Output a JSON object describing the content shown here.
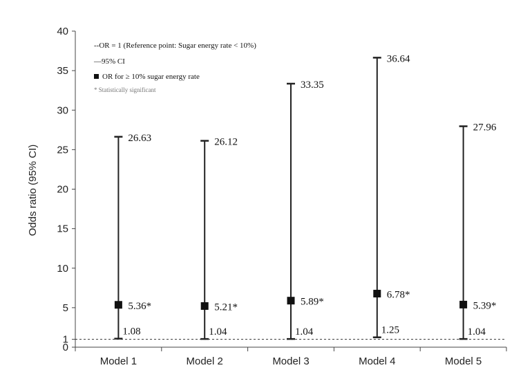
{
  "chart_data": {
    "type": "errorbar",
    "categories": [
      "Model 1",
      "Model 2",
      "Model 3",
      "Model 4",
      "Model 5"
    ],
    "series": [
      {
        "name": "OR for ≥ 10% sugar energy rate",
        "values": [
          5.36,
          5.21,
          5.89,
          6.78,
          5.39
        ],
        "value_labels": [
          "5.36*",
          "5.21*",
          "5.89*",
          "6.78*",
          "5.39*"
        ],
        "ci_lower": [
          1.08,
          1.04,
          1.04,
          1.25,
          1.04
        ],
        "ci_lower_labels": [
          "1.08",
          "1.04",
          "1.04",
          "1.25",
          "1.04"
        ],
        "ci_upper": [
          26.63,
          26.12,
          33.35,
          36.64,
          27.96
        ],
        "ci_upper_labels": [
          "26.63",
          "26.12",
          "33.35",
          "36.64",
          "27.96"
        ]
      }
    ],
    "reference_line": 1,
    "ylabel": "Odds ratio (95% CI)",
    "xlabel": "",
    "ylim": [
      0,
      40
    ],
    "yticks": [
      0,
      1,
      5,
      10,
      15,
      20,
      25,
      30,
      35,
      40
    ],
    "legend": {
      "placement": "top-left",
      "entries": [
        "OR = 1 (Reference point: Sugar energy rate < 10%)",
        "95% CI",
        "OR for ≥ 10% sugar energy rate",
        "* Statistically significant"
      ],
      "markers": [
        "--",
        "—",
        "",
        ""
      ]
    },
    "grid": false
  }
}
